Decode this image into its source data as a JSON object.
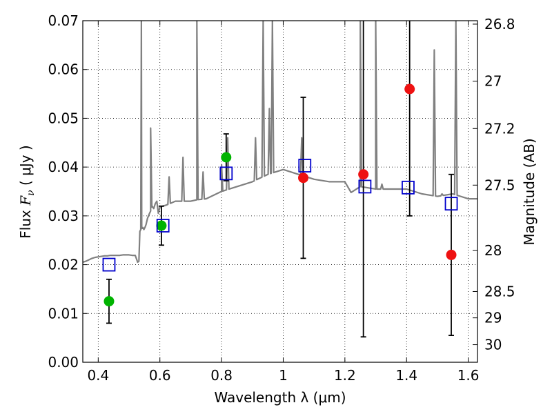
{
  "chart_data": {
    "type": "scatter",
    "xlabel": "Wavelength  λ (μm)",
    "ylabel": "Flux  F_ν  ( μJy )",
    "ylabel_right": "Magnitude (AB)",
    "xlim": [
      0.35,
      1.63
    ],
    "ylim": [
      0,
      0.07
    ],
    "grid": true,
    "x_ticks": [
      0.4,
      0.6,
      0.8,
      1.0,
      1.2,
      1.4,
      1.6
    ],
    "x_tick_labels": [
      "0.4",
      "0.6",
      "0.8",
      "1",
      "1.2",
      "1.4",
      "1.6"
    ],
    "y_ticks": [
      0,
      0.01,
      0.02,
      0.03,
      0.04,
      0.05,
      0.06,
      0.07
    ],
    "y_tick_labels": [
      "0.00",
      "0.01",
      "0.02",
      "0.03",
      "0.04",
      "0.05",
      "0.06",
      "0.07"
    ],
    "right_axis_ticks": [
      {
        "flux": 0.0693,
        "label": "26.8"
      },
      {
        "flux": 0.0576,
        "label": "27"
      },
      {
        "flux": 0.0479,
        "label": "27.2"
      },
      {
        "flux": 0.0363,
        "label": "27.5"
      },
      {
        "flux": 0.0229,
        "label": "28"
      },
      {
        "flux": 0.0145,
        "label": "28.5"
      },
      {
        "flux": 0.0091,
        "label": "29"
      },
      {
        "flux": 0.0036,
        "label": "30"
      }
    ],
    "series": [
      {
        "kind": "spectrum",
        "color": "#808080",
        "x": [
          0.35,
          0.36,
          0.37,
          0.38,
          0.39,
          0.4,
          0.41,
          0.42,
          0.43,
          0.44,
          0.45,
          0.46,
          0.47,
          0.48,
          0.49,
          0.5,
          0.51,
          0.52,
          0.528,
          0.532,
          0.535,
          0.538,
          0.541,
          0.545,
          0.548,
          0.552,
          0.555,
          0.56,
          0.565,
          0.57,
          0.575,
          0.58,
          0.585,
          0.59,
          0.595,
          0.6,
          0.62,
          0.65,
          0.7,
          0.72,
          0.75,
          0.8,
          0.85,
          0.9,
          0.95,
          1.0,
          1.05,
          1.1,
          1.15,
          1.2,
          1.22,
          1.25,
          1.3,
          1.35,
          1.4,
          1.45,
          1.5,
          1.55,
          1.6,
          1.63
        ],
        "y": [
          0.0205,
          0.0207,
          0.021,
          0.0213,
          0.0215,
          0.0216,
          0.0217,
          0.0218,
          0.0218,
          0.0219,
          0.0219,
          0.0219,
          0.0219,
          0.022,
          0.022,
          0.022,
          0.0219,
          0.0219,
          0.0205,
          0.0207,
          0.0268,
          0.0272,
          0.0274,
          0.0276,
          0.0272,
          0.0277,
          0.0282,
          0.0295,
          0.0303,
          0.031,
          0.032,
          0.0315,
          0.0325,
          0.033,
          0.0305,
          0.0318,
          0.0322,
          0.033,
          0.033,
          0.0333,
          0.0335,
          0.035,
          0.036,
          0.037,
          0.0385,
          0.0395,
          0.0385,
          0.0375,
          0.037,
          0.037,
          0.0348,
          0.036,
          0.0355,
          0.0355,
          0.0355,
          0.0345,
          0.034,
          0.0345,
          0.0335,
          0.0335
        ],
        "peaks": [
          [
            0.54,
            0.07
          ],
          [
            0.57,
            0.048
          ],
          [
            0.63,
            0.038
          ],
          [
            0.675,
            0.042
          ],
          [
            0.72,
            0.07
          ],
          [
            0.74,
            0.039
          ],
          [
            0.8,
            0.0405
          ],
          [
            0.82,
            0.046
          ],
          [
            0.91,
            0.046
          ],
          [
            0.935,
            0.07
          ],
          [
            0.955,
            0.052
          ],
          [
            0.965,
            0.07
          ],
          [
            1.06,
            0.046
          ],
          [
            1.25,
            0.07
          ],
          [
            1.3,
            0.07
          ],
          [
            1.32,
            0.0365
          ],
          [
            1.49,
            0.064
          ],
          [
            1.515,
            0.0345
          ],
          [
            1.56,
            0.07
          ]
        ]
      },
      {
        "kind": "markers",
        "name": "",
        "marker": "circle",
        "color": "#00b300",
        "x": [
          0.435,
          0.605,
          0.815
        ],
        "y": [
          0.0125,
          0.028,
          0.042
        ],
        "yerr": [
          0.0045,
          0.004,
          0.0048
        ]
      },
      {
        "kind": "markers",
        "name": "",
        "marker": "circle",
        "color": "#ee1111",
        "x": [
          1.065,
          1.26,
          1.41,
          1.545
        ],
        "y": [
          0.0378,
          0.0385,
          0.056,
          0.022
        ],
        "yerr": [
          0.0165,
          0.0333,
          0.026,
          0.0165
        ]
      },
      {
        "kind": "markers",
        "name": "",
        "marker": "square-open",
        "color": "#0000cc",
        "x": [
          0.435,
          0.61,
          0.815,
          1.07,
          1.265,
          1.405,
          1.545
        ],
        "y": [
          0.02,
          0.028,
          0.0387,
          0.0403,
          0.036,
          0.0358,
          0.0325
        ]
      }
    ]
  }
}
